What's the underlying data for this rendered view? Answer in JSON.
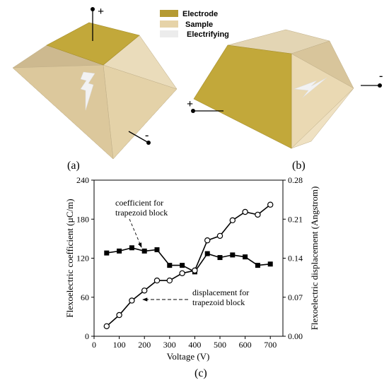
{
  "legend": {
    "items": [
      {
        "label": "Electrode",
        "color": "#b59a32"
      },
      {
        "label": "Sample",
        "color": "#e6d3a8"
      },
      {
        "label": "Electrifying",
        "color": "#ececec"
      }
    ]
  },
  "diagrams": {
    "a": {
      "label": "(a)",
      "plus": "+",
      "minus": "-"
    },
    "b": {
      "label": "(b)",
      "plus": "+",
      "minus": "-"
    }
  },
  "panel_c_label": "(c)",
  "colors": {
    "electrode": "#c2a83a",
    "electrode_dark": "#a58e2c",
    "sample_light": "#efe0c0",
    "sample_mid": "#e2cfa4",
    "sample_dark": "#cdb98f",
    "bolt": "#efefef"
  },
  "chart_data": {
    "type": "line",
    "xlabel": "Voltage (V)",
    "ylabel_left": "Flexoelectric coefficient (µC/m)",
    "ylabel_right": "Flexoelectric displacement (Angstrom)",
    "xlim": [
      0,
      750
    ],
    "ylim_left": [
      0,
      240
    ],
    "ylim_right": [
      0,
      0.28
    ],
    "x_ticks": [
      "0",
      "100",
      "200",
      "300",
      "400",
      "500",
      "600",
      "700"
    ],
    "y_left_ticks": [
      "0",
      "60",
      "120",
      "180",
      "240"
    ],
    "y_right_ticks": [
      "0.00",
      "0.07",
      "0.14",
      "0.21",
      "0.28"
    ],
    "series": [
      {
        "name": "coefficient for trapezoid block",
        "axis": "left",
        "marker": "square-filled",
        "x": [
          50,
          100,
          150,
          200,
          250,
          300,
          350,
          400,
          450,
          500,
          550,
          600,
          650,
          700
        ],
        "values": [
          128,
          131,
          136,
          131,
          133,
          109,
          109,
          99,
          127,
          121,
          125,
          122,
          109,
          111
        ]
      },
      {
        "name": "displacement for trapezoid block",
        "axis": "right",
        "marker": "circle-open",
        "x": [
          50,
          100,
          150,
          200,
          250,
          300,
          350,
          400,
          450,
          500,
          550,
          600,
          650,
          700
        ],
        "values": [
          0.018,
          0.038,
          0.064,
          0.082,
          0.1,
          0.1,
          0.113,
          0.118,
          0.172,
          0.18,
          0.208,
          0.223,
          0.218,
          0.236
        ]
      }
    ],
    "annotations": [
      {
        "text_lines": [
          "coefficient for",
          "trapezoid block"
        ],
        "target_series": 0
      },
      {
        "text_lines": [
          "displacement for",
          "trapezoid block"
        ],
        "target_series": 1
      }
    ]
  }
}
